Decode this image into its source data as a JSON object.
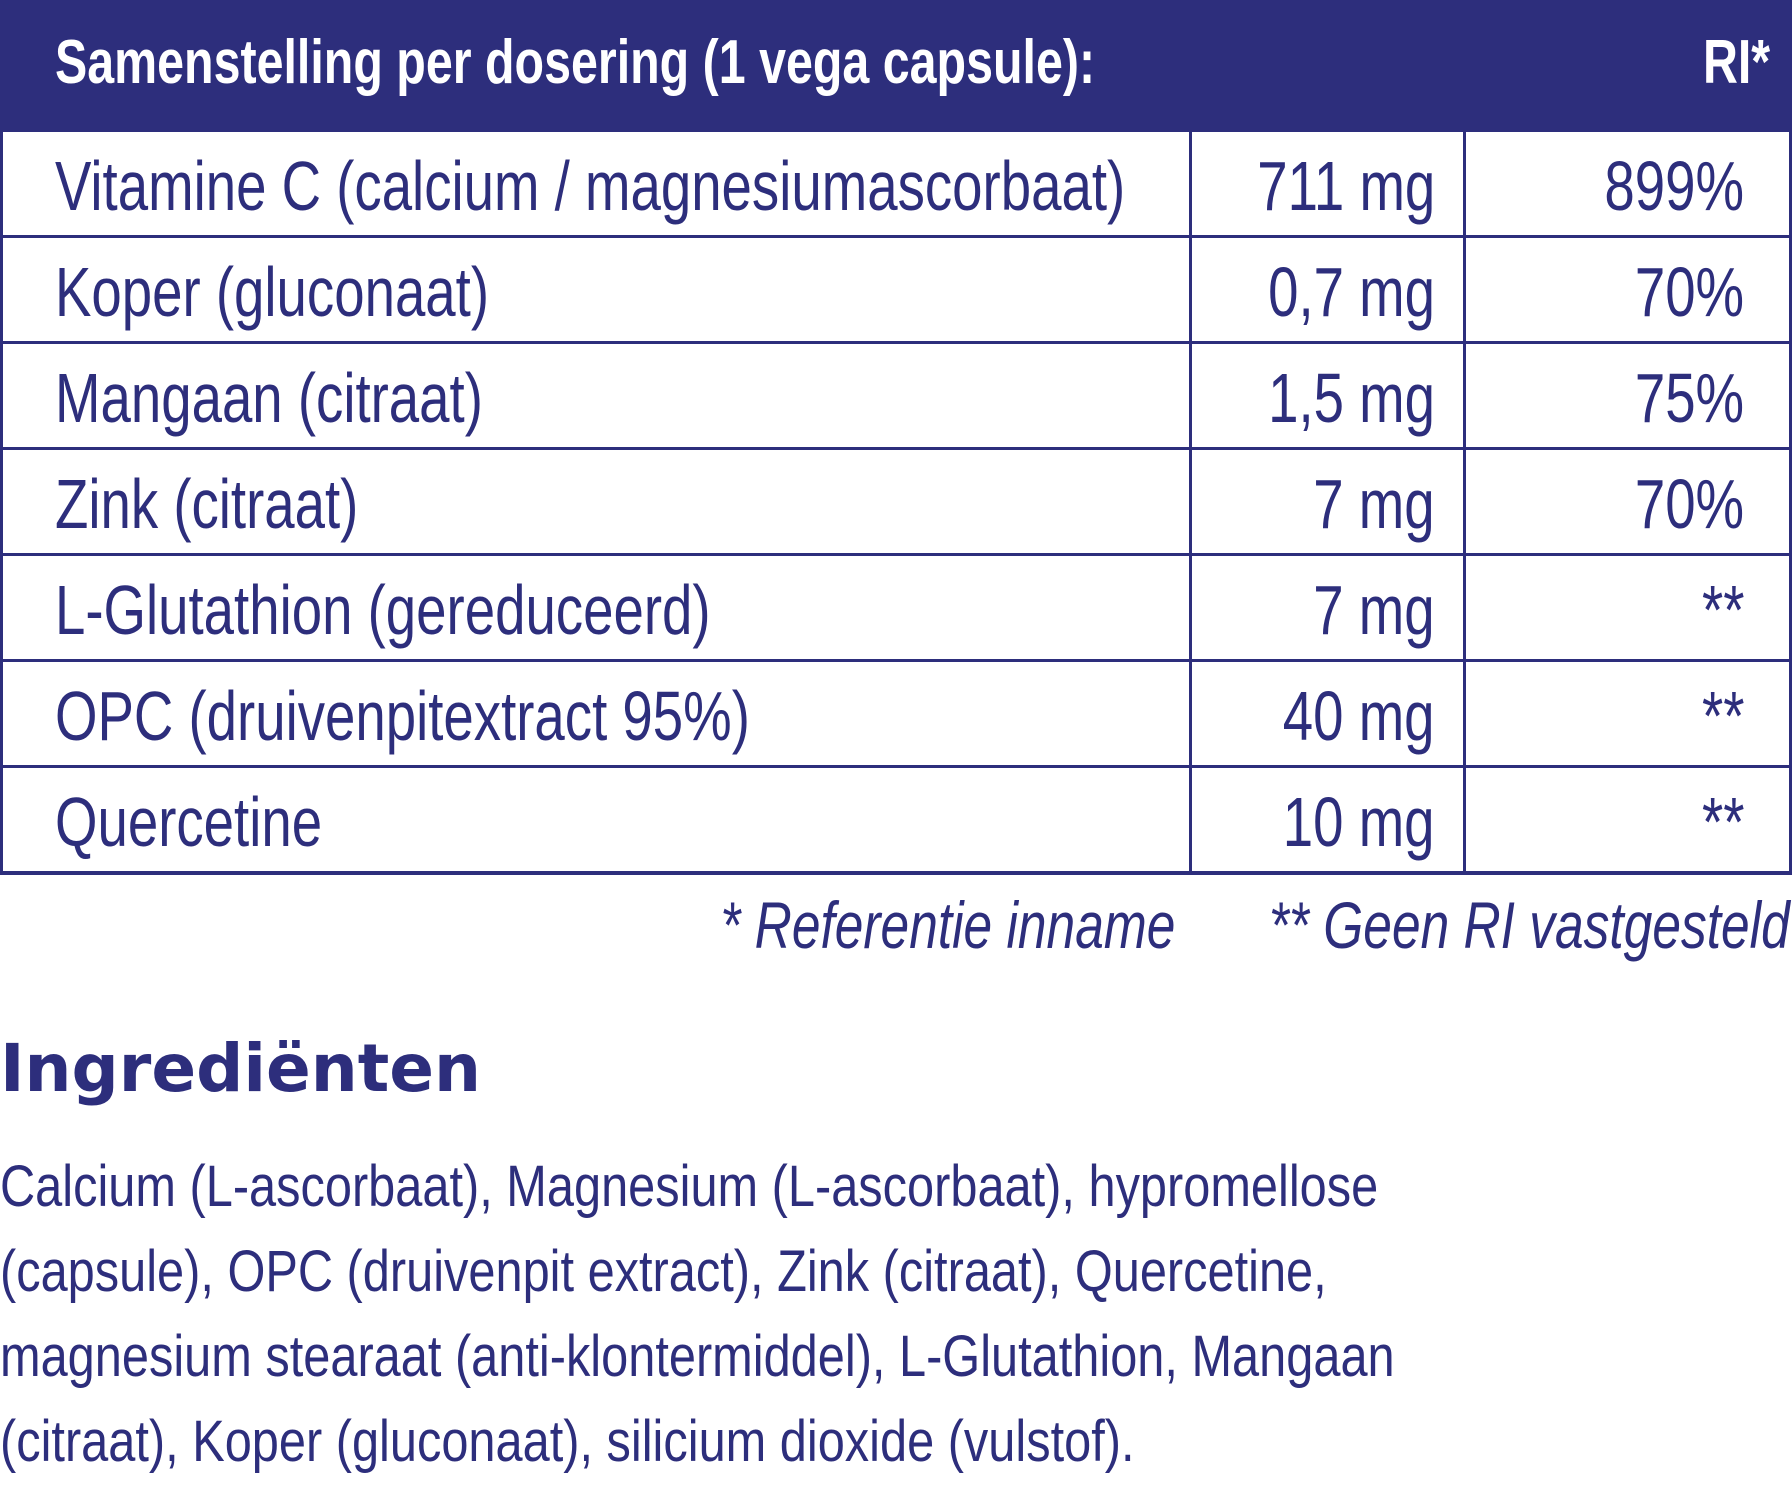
{
  "table": {
    "header": [
      "Samenstelling per dosering (1 vega capsule):",
      "RI*"
    ],
    "rows": [
      [
        "Vitamine C (calcium / magnesiumascorbaat)",
        "711 mg",
        "899%"
      ],
      [
        "Koper (gluconaat)",
        "0,7 mg",
        "70%"
      ],
      [
        "Mangaan (citraat)",
        "1,5 mg",
        "75%"
      ],
      [
        "Zink (citraat)",
        "7 mg",
        "70%"
      ],
      [
        "L-Glutathion (gereduceerd)",
        "7 mg",
        "**"
      ],
      [
        "OPC (druivenpitextract 95%)",
        "40 mg",
        "**"
      ],
      [
        "Quercetine",
        "10 mg",
        "**"
      ]
    ]
  },
  "footnotes": [
    "* Referentie inname",
    "** Geen RI vastgesteld"
  ],
  "ingredients": {
    "title": "Ingrediënten",
    "lines": [
      "Calcium (L-ascorbaat), Magnesium (L-ascorbaat), hypromellose",
      "(capsule), OPC (druivenpit extract), Zink (citraat), Quercetine,",
      "magnesium stearaat (anti-klontermiddel), L-Glutathion, Mangaan",
      "(citraat), Koper (gluconaat), silicium dioxide (vulstof)."
    ]
  }
}
